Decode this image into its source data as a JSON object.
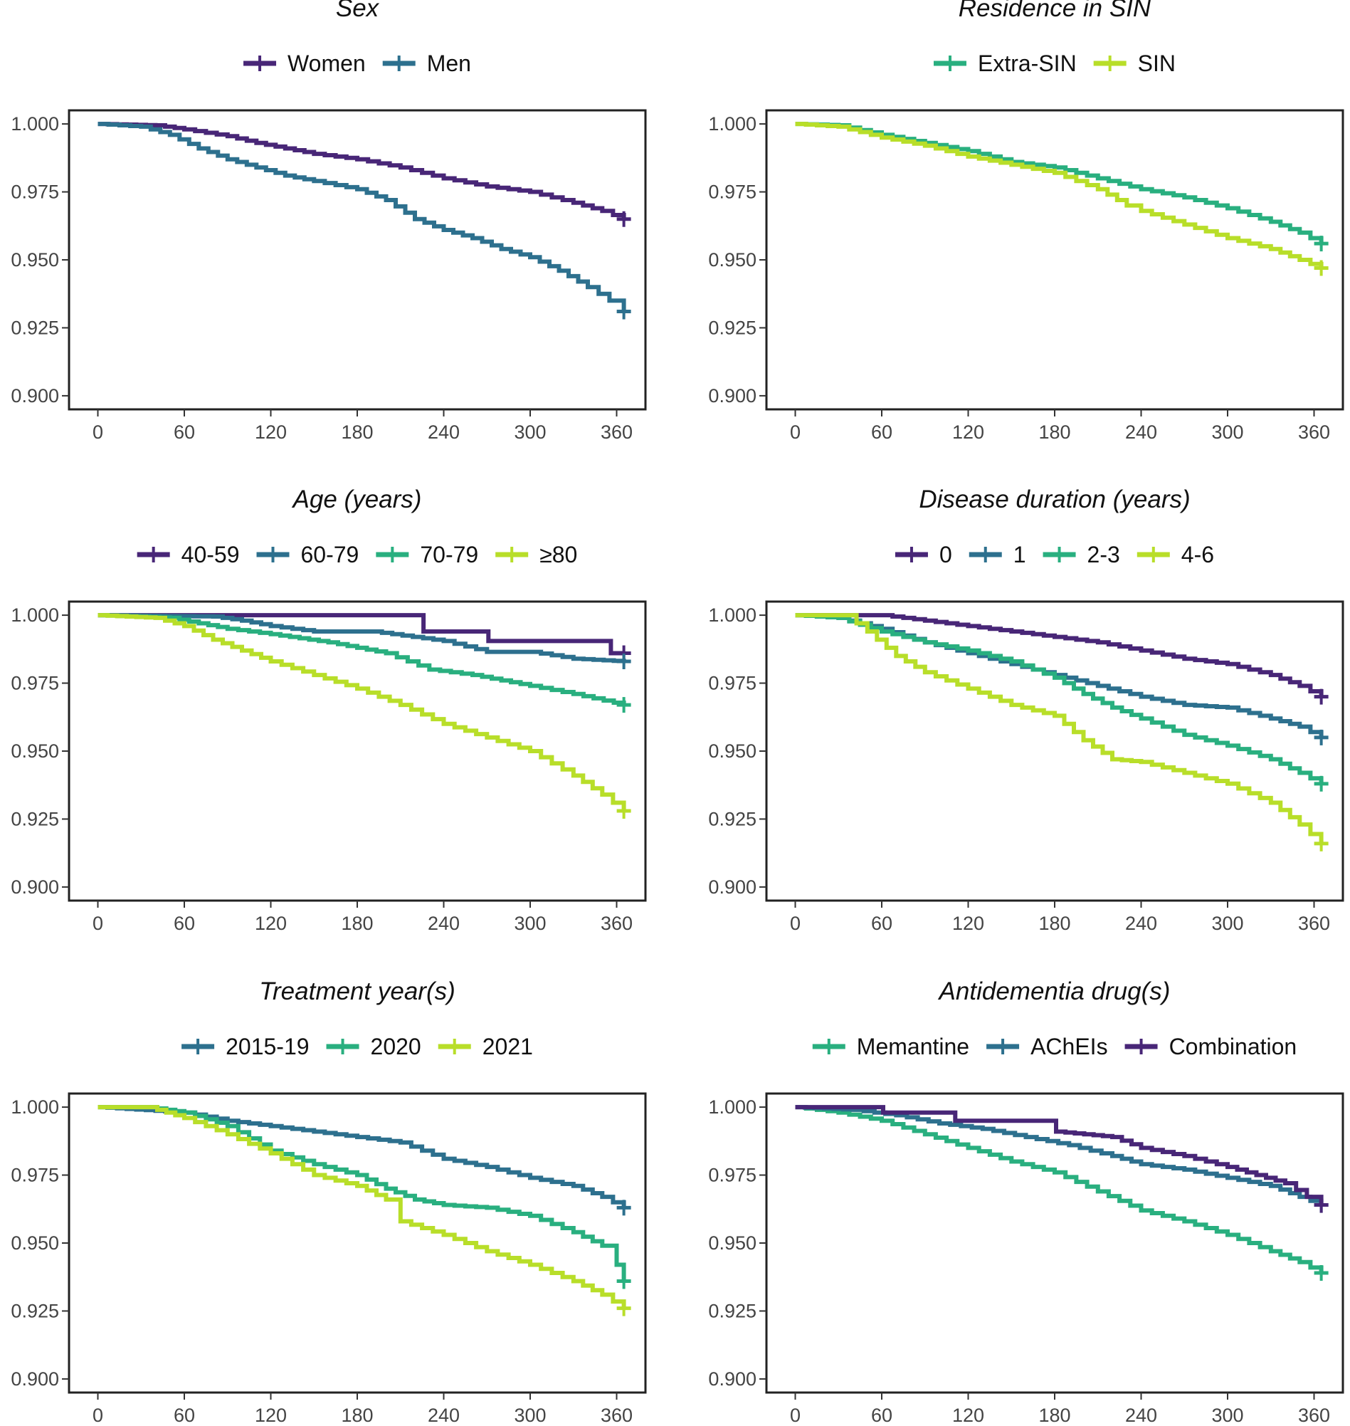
{
  "colors": {
    "purple": "#482677",
    "blue": "#2D708E",
    "teal": "#29AF7F",
    "lime": "#B8DE29"
  },
  "chart_data": [
    {
      "type": "line",
      "title": "Sex",
      "xticks": [
        0,
        60,
        120,
        180,
        240,
        300,
        360
      ],
      "yticks": [
        "1.000",
        "0.975",
        "0.950",
        "0.925",
        "0.900"
      ],
      "xlim": [
        -20,
        380
      ],
      "ylim": [
        0.895,
        1.005
      ],
      "xlabel": "",
      "ylabel": "",
      "series": [
        {
          "name": "Women",
          "color": "#482677",
          "x": [
            0,
            40,
            60,
            90,
            110,
            130,
            150,
            180,
            210,
            240,
            270,
            300,
            330,
            350,
            365
          ],
          "y": [
            1.0,
            0.9995,
            0.998,
            0.9955,
            0.993,
            0.991,
            0.989,
            0.987,
            0.984,
            0.98,
            0.977,
            0.975,
            0.971,
            0.968,
            0.965
          ]
        },
        {
          "name": "Men",
          "color": "#2D708E",
          "x": [
            0,
            30,
            50,
            70,
            90,
            110,
            130,
            150,
            180,
            200,
            220,
            240,
            260,
            280,
            300,
            320,
            340,
            355,
            365
          ],
          "y": [
            1.0,
            0.999,
            0.996,
            0.991,
            0.987,
            0.984,
            0.981,
            0.979,
            0.976,
            0.972,
            0.965,
            0.961,
            0.958,
            0.954,
            0.951,
            0.946,
            0.94,
            0.935,
            0.931
          ]
        }
      ]
    },
    {
      "type": "line",
      "title": "Residence in SIN",
      "xticks": [
        0,
        60,
        120,
        180,
        240,
        300,
        360
      ],
      "yticks": [
        "1.000",
        "0.975",
        "0.950",
        "0.925",
        "0.900"
      ],
      "xlim": [
        -20,
        380
      ],
      "ylim": [
        0.895,
        1.005
      ],
      "xlabel": "",
      "ylabel": "",
      "series": [
        {
          "name": "Extra-SIN",
          "color": "#29AF7F",
          "x": [
            0,
            30,
            60,
            90,
            120,
            150,
            180,
            210,
            240,
            270,
            300,
            330,
            350,
            365
          ],
          "y": [
            1.0,
            0.9995,
            0.996,
            0.993,
            0.99,
            0.986,
            0.984,
            0.98,
            0.976,
            0.973,
            0.969,
            0.964,
            0.96,
            0.956
          ]
        },
        {
          "name": "SIN",
          "color": "#B8DE29",
          "x": [
            0,
            30,
            60,
            90,
            120,
            150,
            180,
            210,
            230,
            240,
            270,
            300,
            330,
            350,
            365
          ],
          "y": [
            1.0,
            0.999,
            0.995,
            0.992,
            0.988,
            0.985,
            0.982,
            0.976,
            0.97,
            0.968,
            0.963,
            0.958,
            0.954,
            0.95,
            0.947
          ]
        }
      ]
    },
    {
      "type": "line",
      "title": "Age (years)",
      "xticks": [
        0,
        60,
        120,
        180,
        240,
        300,
        360
      ],
      "yticks": [
        "1.000",
        "0.975",
        "0.950",
        "0.925",
        "0.900"
      ],
      "xlim": [
        -20,
        380
      ],
      "ylim": [
        0.895,
        1.005
      ],
      "xlabel": "",
      "ylabel": "",
      "series": [
        {
          "name": "40-59",
          "color": "#482677",
          "x": [
            0,
            225,
            226,
            270,
            271,
            355,
            356,
            365
          ],
          "y": [
            1.0,
            1.0,
            0.994,
            0.994,
            0.9905,
            0.9905,
            0.986,
            0.986
          ]
        },
        {
          "name": "60-79",
          "color": "#2D708E",
          "x": [
            0,
            80,
            100,
            120,
            150,
            190,
            240,
            270,
            300,
            330,
            365
          ],
          "y": [
            1.0,
            0.9995,
            0.998,
            0.996,
            0.994,
            0.994,
            0.9905,
            0.9865,
            0.9865,
            0.984,
            0.983
          ]
        },
        {
          "name": "70-79",
          "color": "#29AF7F",
          "x": [
            0,
            50,
            70,
            90,
            120,
            160,
            200,
            230,
            260,
            300,
            330,
            365
          ],
          "y": [
            1.0,
            0.999,
            0.997,
            0.995,
            0.993,
            0.99,
            0.986,
            0.98,
            0.978,
            0.974,
            0.971,
            0.967
          ]
        },
        {
          "name": "≥80",
          "color": "#B8DE29",
          "x": [
            0,
            40,
            60,
            80,
            100,
            120,
            150,
            180,
            210,
            240,
            270,
            300,
            330,
            350,
            365
          ],
          "y": [
            1.0,
            0.999,
            0.996,
            0.991,
            0.987,
            0.983,
            0.978,
            0.973,
            0.967,
            0.96,
            0.955,
            0.95,
            0.941,
            0.934,
            0.928
          ]
        }
      ]
    },
    {
      "type": "line",
      "title": "Disease duration (years)",
      "xticks": [
        0,
        60,
        120,
        180,
        240,
        300,
        360
      ],
      "yticks": [
        "1.000",
        "0.975",
        "0.950",
        "0.925",
        "0.900"
      ],
      "xlim": [
        -20,
        380
      ],
      "ylim": [
        0.895,
        1.005
      ],
      "xlabel": "",
      "ylabel": "",
      "series": [
        {
          "name": "0",
          "color": "#482677",
          "x": [
            0,
            60,
            90,
            120,
            150,
            180,
            210,
            240,
            270,
            300,
            330,
            350,
            365
          ],
          "y": [
            1.0,
            1.0,
            0.998,
            0.996,
            0.994,
            0.992,
            0.99,
            0.987,
            0.984,
            0.982,
            0.978,
            0.974,
            0.97
          ]
        },
        {
          "name": "1",
          "color": "#2D708E",
          "x": [
            0,
            30,
            60,
            90,
            120,
            150,
            180,
            210,
            240,
            270,
            300,
            330,
            350,
            365
          ],
          "y": [
            1.0,
            0.999,
            0.995,
            0.99,
            0.986,
            0.982,
            0.978,
            0.974,
            0.97,
            0.967,
            0.966,
            0.962,
            0.959,
            0.955
          ]
        },
        {
          "name": "2-3",
          "color": "#29AF7F",
          "x": [
            0,
            30,
            60,
            90,
            120,
            150,
            180,
            200,
            220,
            240,
            270,
            300,
            330,
            350,
            365
          ],
          "y": [
            1.0,
            0.999,
            0.994,
            0.99,
            0.987,
            0.983,
            0.977,
            0.971,
            0.966,
            0.962,
            0.956,
            0.952,
            0.947,
            0.942,
            0.938
          ]
        },
        {
          "name": "4-6",
          "color": "#B8DE29",
          "x": [
            0,
            35,
            50,
            70,
            90,
            120,
            150,
            180,
            200,
            220,
            240,
            270,
            300,
            330,
            350,
            365
          ],
          "y": [
            1.0,
            1.0,
            0.994,
            0.985,
            0.979,
            0.973,
            0.967,
            0.963,
            0.954,
            0.947,
            0.946,
            0.942,
            0.938,
            0.931,
            0.923,
            0.916
          ]
        }
      ]
    },
    {
      "type": "line",
      "title": "Treatment year(s)",
      "xticks": [
        0,
        60,
        120,
        180,
        240,
        300,
        360
      ],
      "yticks": [
        "1.000",
        "0.975",
        "0.950",
        "0.925",
        "0.900"
      ],
      "xlim": [
        -20,
        380
      ],
      "ylim": [
        0.895,
        1.005
      ],
      "xlabel": "",
      "ylabel": "",
      "series": [
        {
          "name": "2015-19",
          "color": "#2D708E",
          "x": [
            0,
            60,
            90,
            120,
            150,
            180,
            210,
            240,
            270,
            300,
            330,
            350,
            365
          ],
          "y": [
            1.0,
            0.998,
            0.995,
            0.993,
            0.991,
            0.989,
            0.987,
            0.981,
            0.978,
            0.974,
            0.971,
            0.967,
            0.963
          ]
        },
        {
          "name": "2020",
          "color": "#29AF7F",
          "x": [
            0,
            35,
            60,
            90,
            120,
            150,
            180,
            200,
            220,
            240,
            270,
            300,
            330,
            350,
            360,
            365
          ],
          "y": [
            1.0,
            1.0,
            0.998,
            0.993,
            0.984,
            0.979,
            0.975,
            0.97,
            0.966,
            0.964,
            0.963,
            0.96,
            0.954,
            0.949,
            0.942,
            0.936
          ]
        },
        {
          "name": "2021",
          "color": "#B8DE29",
          "x": [
            0,
            35,
            60,
            90,
            120,
            150,
            180,
            200,
            210,
            240,
            270,
            300,
            330,
            350,
            365
          ],
          "y": [
            1.0,
            1.0,
            0.996,
            0.99,
            0.983,
            0.975,
            0.971,
            0.966,
            0.958,
            0.953,
            0.947,
            0.942,
            0.936,
            0.931,
            0.926
          ]
        }
      ]
    },
    {
      "type": "line",
      "title": "Antidementia drug(s)",
      "xticks": [
        0,
        60,
        120,
        180,
        240,
        300,
        360
      ],
      "yticks": [
        "1.000",
        "0.975",
        "0.950",
        "0.925",
        "0.900"
      ],
      "xlim": [
        -20,
        380
      ],
      "ylim": [
        0.895,
        1.005
      ],
      "xlabel": "",
      "ylabel": "",
      "series": [
        {
          "name": "Memantine",
          "color": "#29AF7F",
          "x": [
            0,
            30,
            60,
            90,
            120,
            150,
            180,
            210,
            240,
            270,
            300,
            330,
            350,
            365
          ],
          "y": [
            1.0,
            0.998,
            0.995,
            0.99,
            0.985,
            0.98,
            0.976,
            0.969,
            0.962,
            0.958,
            0.953,
            0.947,
            0.943,
            0.939
          ]
        },
        {
          "name": "AChEIs",
          "color": "#2D708E",
          "x": [
            0,
            40,
            70,
            100,
            130,
            160,
            190,
            220,
            240,
            270,
            300,
            330,
            350,
            365
          ],
          "y": [
            1.0,
            0.999,
            0.997,
            0.994,
            0.992,
            0.989,
            0.986,
            0.982,
            0.979,
            0.977,
            0.974,
            0.971,
            0.967,
            0.964
          ]
        },
        {
          "name": "Combination",
          "color": "#482677",
          "x": [
            0,
            60,
            61,
            110,
            111,
            180,
            181,
            220,
            240,
            270,
            300,
            320,
            340,
            355,
            365
          ],
          "y": [
            1.0,
            1.0,
            0.998,
            0.998,
            0.995,
            0.995,
            0.991,
            0.989,
            0.985,
            0.982,
            0.978,
            0.975,
            0.972,
            0.967,
            0.964
          ]
        }
      ]
    }
  ]
}
